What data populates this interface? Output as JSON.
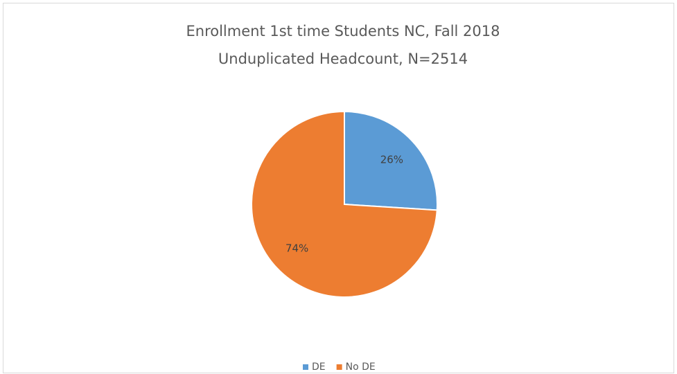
{
  "chart_data": {
    "type": "pie",
    "title": "Enrollment 1st time Students NC, Fall 2018",
    "subtitle": "Unduplicated Headcount, N=2514",
    "categories": [
      "DE",
      "No DE"
    ],
    "values": [
      26,
      74
    ],
    "value_labels": [
      "26%",
      "74%"
    ],
    "colors": [
      "#5b9bd5",
      "#ed7d31"
    ],
    "legend": "bottom"
  }
}
